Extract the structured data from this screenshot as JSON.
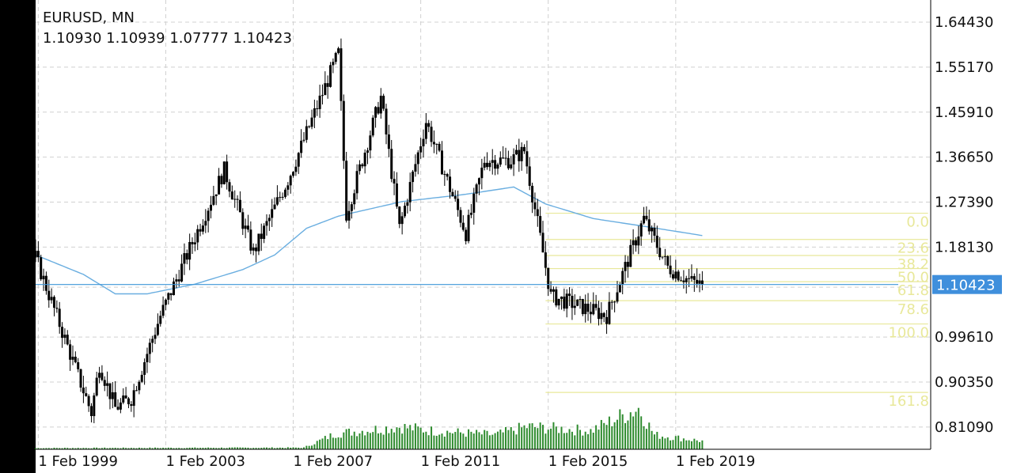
{
  "header": {
    "title": "EURUSD, MN",
    "ohlc": "1.10930 1.10939 1.07777 1.10423"
  },
  "current_price_label": "1.10423",
  "chart_data": {
    "type": "candlestick",
    "symbol": "EURUSD",
    "timeframe": "MN",
    "ylim": [
      0.765,
      1.69
    ],
    "y_ticks": [
      "1.64430",
      "1.55170",
      "1.45910",
      "1.36650",
      "1.27390",
      "1.18130",
      "1.09870",
      "0.99610",
      "0.90350",
      "0.81090"
    ],
    "x_ticks": [
      {
        "label": "1 Feb 1999",
        "date": "1999-02"
      },
      {
        "label": "1 Feb 2003",
        "date": "2003-02"
      },
      {
        "label": "1 Feb 2007",
        "date": "2007-02"
      },
      {
        "label": "1 Feb 2011",
        "date": "2011-02"
      },
      {
        "label": "1 Feb 2015",
        "date": "2015-02"
      },
      {
        "label": "1 Feb 2019",
        "date": "2019-02"
      }
    ],
    "x_range": [
      "1999-01",
      "2027-02"
    ],
    "current_price": 1.10423,
    "price_path": [
      [
        "1999-01",
        1.16
      ],
      [
        "2000-10",
        0.84
      ],
      [
        "2001-01",
        0.94
      ],
      [
        "2001-07",
        0.85
      ],
      [
        "2002-01",
        0.87
      ],
      [
        "2002-12",
        1.04
      ],
      [
        "2004-12",
        1.34
      ],
      [
        "2005-11",
        1.17
      ],
      [
        "2006-12",
        1.32
      ],
      [
        "2008-07",
        1.58
      ],
      [
        "2008-10",
        1.25
      ],
      [
        "2009-11",
        1.49
      ],
      [
        "2010-06",
        1.22
      ],
      [
        "2011-04",
        1.44
      ],
      [
        "2012-07",
        1.21
      ],
      [
        "2013-02",
        1.36
      ],
      [
        "2013-12",
        1.36
      ],
      [
        "2014-05",
        1.38
      ],
      [
        "2015-03",
        1.08
      ],
      [
        "2016-12",
        1.04
      ],
      [
        "2018-02",
        1.24
      ],
      [
        "2018-11",
        1.14
      ],
      [
        "2019-08",
        1.11
      ],
      [
        "2019-12",
        1.104
      ]
    ],
    "moving_average": [
      [
        "1999-01",
        1.165
      ],
      [
        "2000-07",
        1.125
      ],
      [
        "2001-07",
        1.085
      ],
      [
        "2002-07",
        1.085
      ],
      [
        "2004-01",
        1.105
      ],
      [
        "2005-07",
        1.135
      ],
      [
        "2006-07",
        1.165
      ],
      [
        "2007-07",
        1.22
      ],
      [
        "2008-07",
        1.245
      ],
      [
        "2010-07",
        1.275
      ],
      [
        "2012-07",
        1.29
      ],
      [
        "2014-01",
        1.305
      ],
      [
        "2015-01",
        1.27
      ],
      [
        "2016-07",
        1.24
      ],
      [
        "2018-01",
        1.225
      ],
      [
        "2019-12",
        1.205
      ]
    ],
    "fibonacci": {
      "from_date": "2015-01",
      "to_date": "2027-01",
      "levels": [
        {
          "label": "0.0",
          "price": 1.251
        },
        {
          "label": "23.6",
          "price": 1.197
        },
        {
          "label": "38.2",
          "price": 1.164
        },
        {
          "label": "50.0",
          "price": 1.137
        },
        {
          "label": "61.8",
          "price": 1.11
        },
        {
          "label": "78.6",
          "price": 1.071
        },
        {
          "label": "100.0",
          "price": 1.023
        },
        {
          "label": "161.8",
          "price": 0.882
        }
      ]
    },
    "volume_profile": [
      [
        "1999-01",
        0.03
      ],
      [
        "2007-06",
        0.04
      ],
      [
        "2008-06",
        0.38
      ],
      [
        "2010-06",
        0.55
      ],
      [
        "2011-06",
        0.45
      ],
      [
        "2013-06",
        0.35
      ],
      [
        "2014-06",
        0.55
      ],
      [
        "2016-06",
        0.45
      ],
      [
        "2017-12",
        1.0
      ],
      [
        "2018-06",
        0.35
      ],
      [
        "2019-12",
        0.2
      ]
    ]
  },
  "colors": {
    "background": "#ffffff",
    "grid": "#d0d0d0",
    "candle": "#000000",
    "ma_line": "#6aaee0",
    "price_line": "#3d96d8",
    "price_label_bg": "#3f8fdc",
    "fib": "#e8e89a",
    "volume": "#2e8b2e",
    "text": "#111111"
  }
}
